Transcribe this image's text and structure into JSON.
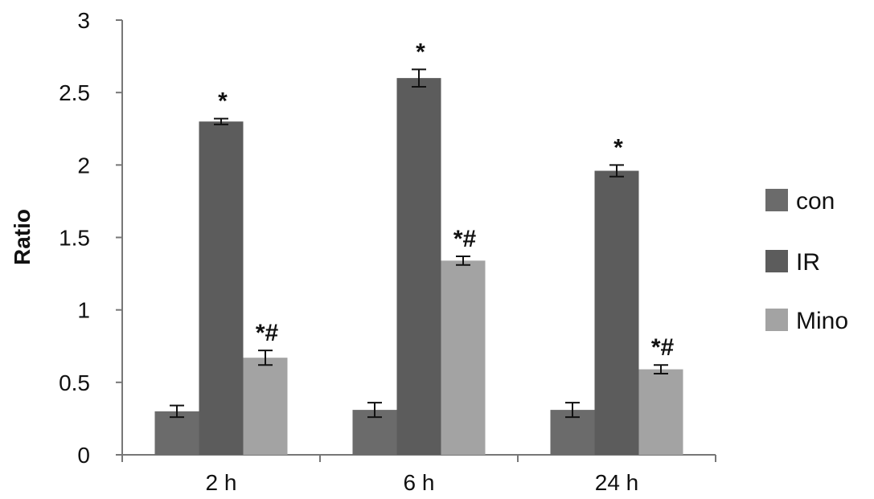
{
  "chart_data": {
    "type": "bar",
    "title": "",
    "xlabel": "",
    "ylabel": "Ratio",
    "ylim": [
      0,
      3
    ],
    "yticks": [
      "0",
      "0.5",
      "1",
      "1.5",
      "2",
      "2.5",
      "3"
    ],
    "categories": [
      "2 h",
      "6 h",
      "24 h"
    ],
    "grid": false,
    "legend_position": "right",
    "series": [
      {
        "name": "con",
        "color": "#6b6b6b",
        "values": [
          0.3,
          0.31,
          0.31
        ],
        "errors": [
          0.04,
          0.05,
          0.05
        ],
        "annotations": [
          "",
          "",
          ""
        ]
      },
      {
        "name": "IR",
        "color": "#5c5c5c",
        "values": [
          2.3,
          2.6,
          1.96
        ],
        "errors": [
          0.02,
          0.06,
          0.04
        ],
        "annotations": [
          "*",
          "*",
          "*"
        ]
      },
      {
        "name": "Mino",
        "color": "#a3a3a3",
        "values": [
          0.67,
          1.34,
          0.59
        ],
        "errors": [
          0.05,
          0.03,
          0.03
        ],
        "annotations": [
          "*#",
          "*#",
          "*#"
        ]
      }
    ]
  }
}
